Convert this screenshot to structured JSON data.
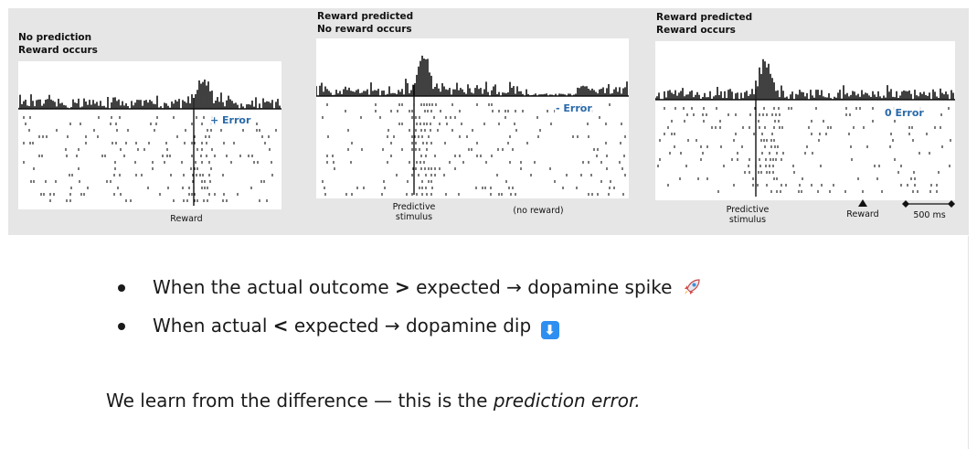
{
  "panels": [
    {
      "title": "No prediction\nReward occurs",
      "error_label": "+ Error",
      "x_labels": {
        "reward": "Reward"
      }
    },
    {
      "title": "Reward predicted\nNo reward occurs",
      "error_label": "- Error",
      "x_labels": {
        "stimulus": "Predictive\nstimulus",
        "no_reward": "(no reward)"
      }
    },
    {
      "title": "Reward predicted\nReward occurs",
      "error_label": "0 Error",
      "x_labels": {
        "stimulus": "Predictive\nstimulus",
        "reward": "Reward",
        "scale": "500 ms"
      }
    }
  ],
  "bullets": [
    {
      "before": "When the actual outcome ",
      "symbol": ">",
      "after": " expected → dopamine spike",
      "emoji": "rocket-icon"
    },
    {
      "before": "When actual ",
      "symbol": "<",
      "after": " expected → dopamine dip",
      "emoji": "down-arrow-box-icon",
      "emoji_glyph": "⬇"
    }
  ],
  "summary": {
    "text": "We learn from the difference — this is the ",
    "emphasis": "prediction error."
  },
  "colors": {
    "error_label": "#2a6aa8",
    "figure_bg": "#e6e6e6",
    "emoji_box": "#2f8ff0"
  }
}
